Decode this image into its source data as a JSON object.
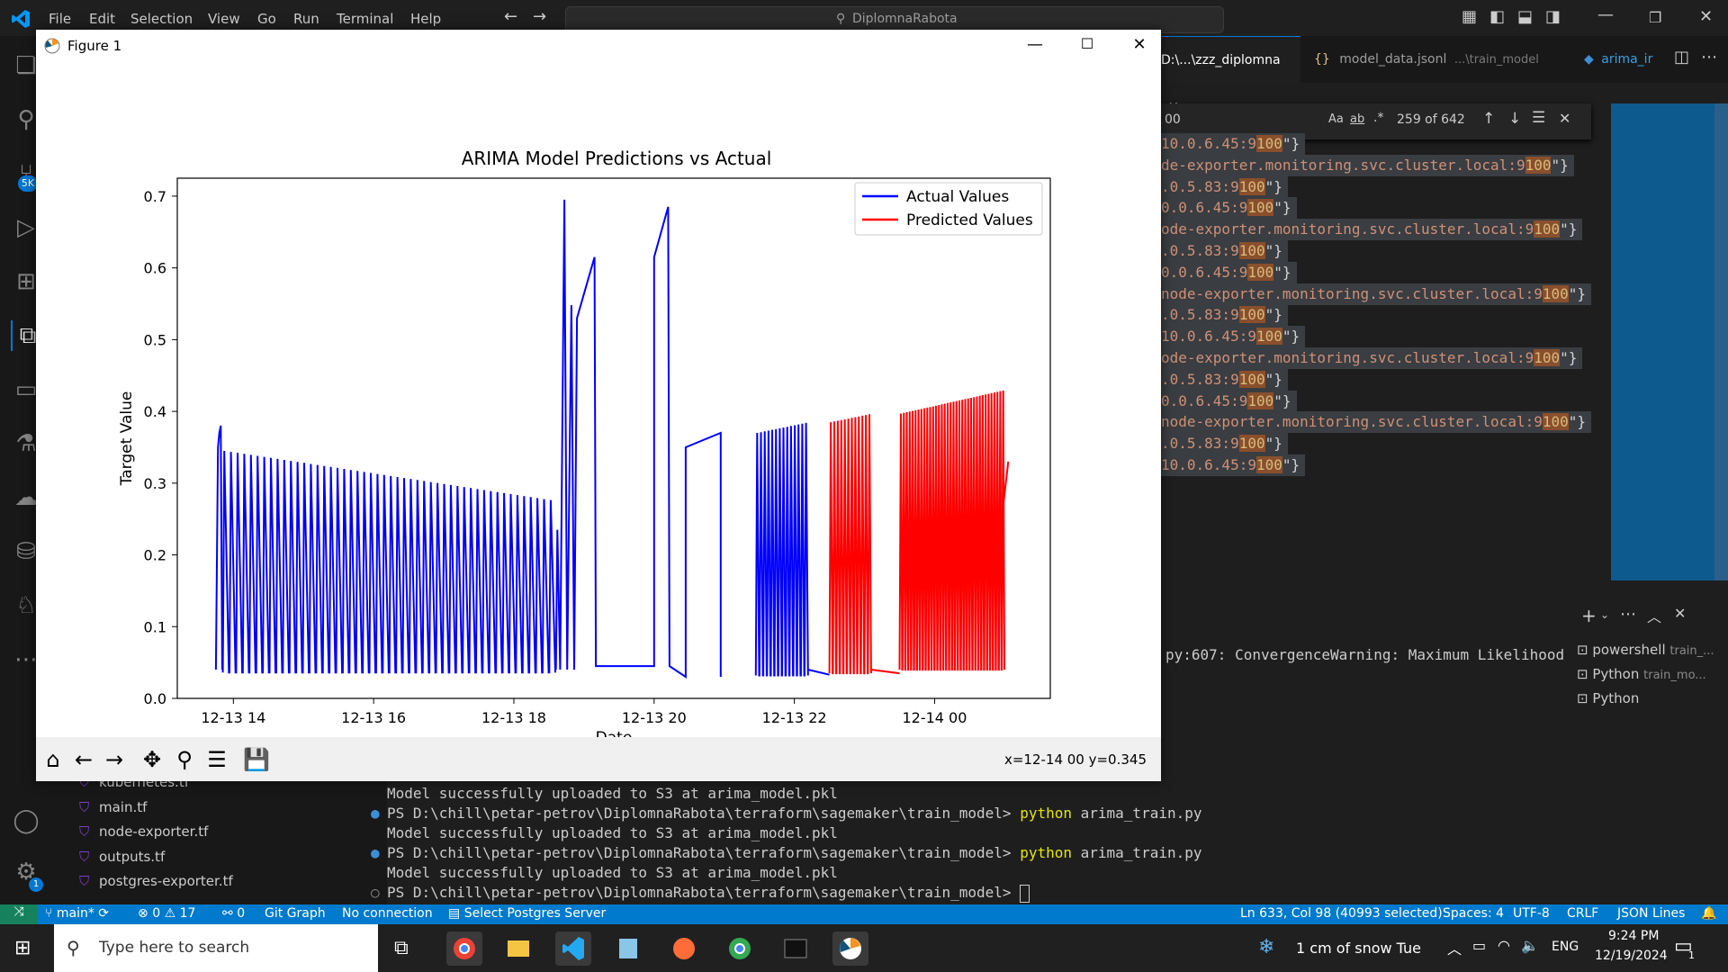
{
  "vscode": {
    "menu": [
      "File",
      "Edit",
      "Selection",
      "View",
      "Go",
      "Run",
      "Terminal",
      "Help"
    ],
    "search_title": "DiplomnaRabota",
    "tabs": [
      {
        "label": "D:\\...\\zzz_diplomna",
        "close": "✕"
      },
      {
        "label": "model_data.jsonl",
        "sub": "...\\train_model"
      },
      {
        "label": "arima_ir"
      }
    ],
    "find": {
      "query": "00",
      "count": "259 of 642",
      "opt_case": "Aa",
      "opt_word": "ab",
      "opt_regex": ".*"
    },
    "code_lines": [
      {
        "pre": "10.0.6.45:9",
        "hl": "100",
        "post": "\"}"
      },
      {
        "pre": "de-exporter.monitoring.svc.cluster.local:9",
        "hl": "100",
        "post": "\"}"
      },
      {
        "pre": ".0.5.83:9",
        "hl": "100",
        "post": "\"}"
      },
      {
        "pre": "0.0.6.45:9",
        "hl": "100",
        "post": "\"}"
      },
      {
        "pre": "ode-exporter.monitoring.svc.cluster.local:9",
        "hl": "100",
        "post": "\"}"
      },
      {
        "pre": ".0.5.83:9",
        "hl": "100",
        "post": "\"}"
      },
      {
        "pre": "0.0.6.45:9",
        "hl": "100",
        "post": "\"}"
      },
      {
        "pre": "node-exporter.monitoring.svc.cluster.local:9",
        "hl": "100",
        "post": "\"}"
      },
      {
        "pre": ".0.5.83:9",
        "hl": "100",
        "post": "\"}"
      },
      {
        "pre": "10.0.6.45:9",
        "hl": "100",
        "post": "\"}"
      },
      {
        "pre": "ode-exporter.monitoring.svc.cluster.local:9",
        "hl": "100",
        "post": "\"}"
      },
      {
        "pre": ".0.5.83:9",
        "hl": "100",
        "post": "\"}"
      },
      {
        "pre": "0.0.6.45:9",
        "hl": "100",
        "post": "\"}"
      },
      {
        "pre": "node-exporter.monitoring.svc.cluster.local:9",
        "hl": "100",
        "post": "\"}"
      },
      {
        "pre": ".0.5.83:9",
        "hl": "100",
        "post": "\"}"
      },
      {
        "pre": "10.0.6.45:9",
        "hl": "100",
        "post": "\"}"
      }
    ],
    "terminal_warning": "py:607: ConvergenceWarning: Maximum Likelihood",
    "terminal_list": [
      {
        "name": "powershell",
        "sub": "train_..."
      },
      {
        "name": "Python",
        "sub": "train_mo..."
      },
      {
        "name": "Python",
        "sub": ""
      }
    ],
    "terminal_lines": [
      {
        "text": "Model successfully uploaded to S3 at arima_model.pkl",
        "prompt": false
      },
      {
        "text": "PS D:\\chill\\petar-petrov\\DiplomnaRabota\\terraform\\sagemaker\\train_model> ",
        "cmd": "python",
        "args": " arima_train.py",
        "prompt": true
      },
      {
        "text": "Model successfully uploaded to S3 at arima_model.pkl",
        "prompt": false
      },
      {
        "text": "PS D:\\chill\\petar-petrov\\DiplomnaRabota\\terraform\\sagemaker\\train_model> ",
        "cmd": "python",
        "args": " arima_train.py",
        "prompt": true
      },
      {
        "text": "Model successfully uploaded to S3 at arima_model.pkl",
        "prompt": false
      },
      {
        "text": "PS D:\\chill\\petar-petrov\\DiplomnaRabota\\terraform\\sagemaker\\train_model> ",
        "prompt": true,
        "last": true
      }
    ],
    "files": [
      "kubernetes.tf",
      "main.tf",
      "node-exporter.tf",
      "outputs.tf",
      "postgres-exporter.tf"
    ],
    "status": {
      "branch": "main*",
      "errors": "0",
      "warnings": "17",
      "ports": "0",
      "git_graph": "Git Graph",
      "connection": "No connection",
      "postgres": "Select Postgres Server",
      "position": "Ln 633, Col 98 (40993 selected)",
      "spaces": "Spaces: 4",
      "encoding": "UTF-8",
      "eol": "CRLF",
      "language": "JSON Lines"
    }
  },
  "figure": {
    "window_title": "Figure 1",
    "coord_readout": "x=12-14 00 y=0.345"
  },
  "chart_data": {
    "type": "line",
    "title": "ARIMA Model Predictions vs Actual",
    "xlabel": "Date",
    "ylabel": "Target Value",
    "x_ticks": [
      "12-13 14",
      "12-13 16",
      "12-13 18",
      "12-13 20",
      "12-13 22",
      "12-14 00"
    ],
    "y_ticks": [
      "0.0",
      "0.1",
      "0.2",
      "0.3",
      "0.4",
      "0.5",
      "0.6",
      "0.7"
    ],
    "xlim_hours": [
      13.2,
      25.65
    ],
    "ylim": [
      0,
      0.725
    ],
    "legend_position": "upper right",
    "series": [
      {
        "name": "Actual Values",
        "color": "#0000ff"
      },
      {
        "name": "Predicted Values",
        "color": "#ff0000"
      }
    ]
  },
  "taskbar": {
    "search_placeholder": "Type here to search",
    "weather": "1 cm of snow  Tue",
    "lang": "ENG",
    "time": "9:24 PM",
    "date": "12/19/2024",
    "notif_count": "1"
  }
}
